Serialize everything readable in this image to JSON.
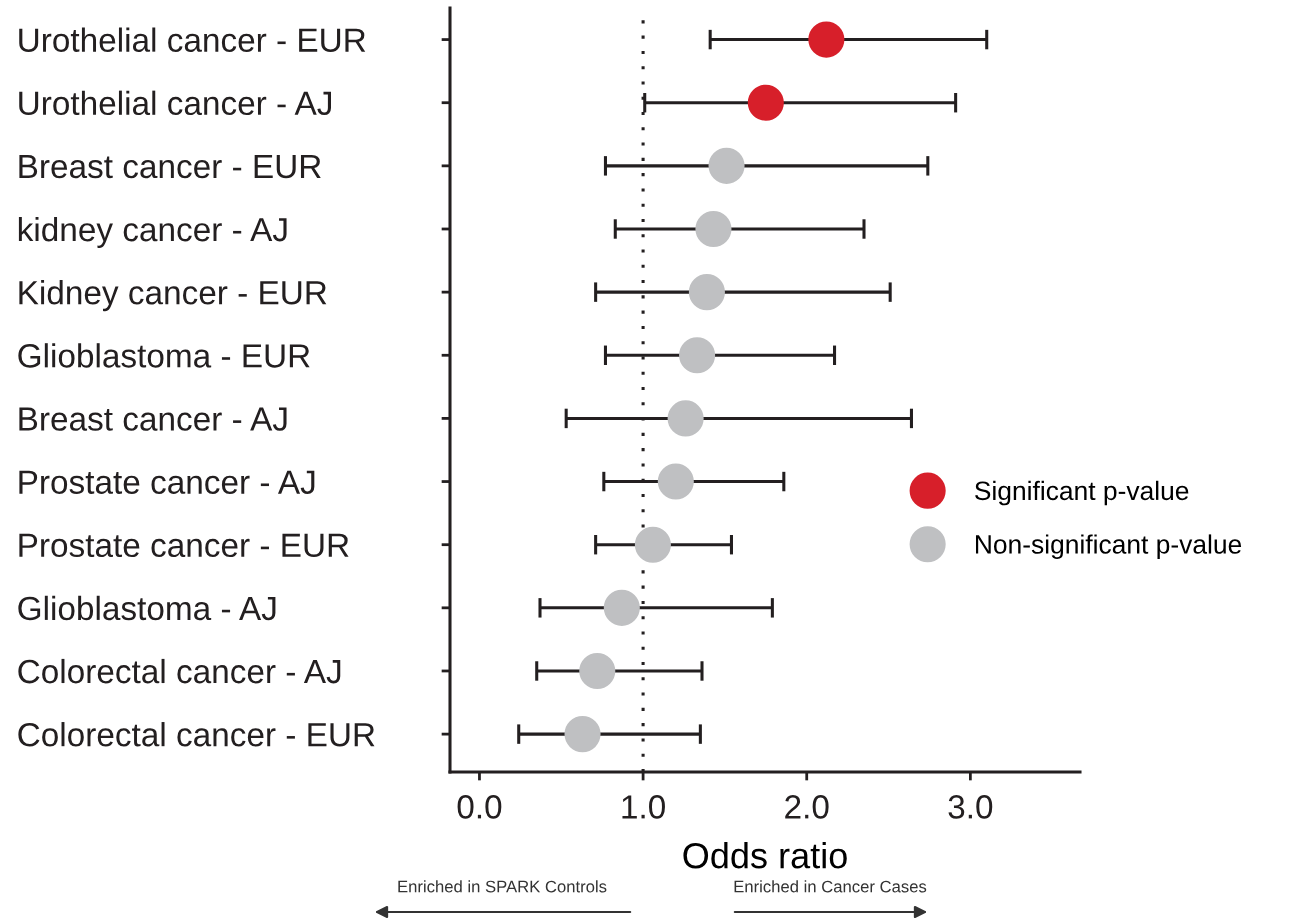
{
  "chart_data": {
    "type": "scatter",
    "orientation": "horizontal",
    "xlabel": "Odds ratio",
    "categories": [
      "Urothelial cancer - EUR",
      "Urothelial cancer - AJ",
      "Breast cancer - EUR",
      "kidney cancer - AJ",
      "Kidney cancer - EUR",
      "Glioblastoma - EUR",
      "Breast cancer - AJ",
      "Prostate cancer - AJ",
      "Prostate cancer - EUR",
      "Glioblastoma - AJ",
      "Colorectal cancer - AJ",
      "Colorectal cancer - EUR"
    ],
    "series": [
      {
        "name": "Significant p-value",
        "color": "#d71f2a",
        "values": [
          2.12,
          1.75,
          null,
          null,
          null,
          null,
          null,
          null,
          null,
          null,
          null,
          null
        ],
        "errors": [
          [
            1.41,
            3.1
          ],
          [
            1.01,
            2.91
          ],
          null,
          null,
          null,
          null,
          null,
          null,
          null,
          null,
          null,
          null
        ]
      },
      {
        "name": "Non-significant p-value",
        "color": "#bfc0c2",
        "values": [
          null,
          null,
          1.51,
          1.43,
          1.39,
          1.33,
          1.26,
          1.2,
          1.06,
          0.87,
          0.72,
          0.63
        ],
        "errors": [
          null,
          null,
          [
            0.77,
            2.74
          ],
          [
            0.83,
            2.35
          ],
          [
            0.71,
            2.51
          ],
          [
            0.77,
            2.17
          ],
          [
            0.53,
            2.64
          ],
          [
            0.76,
            1.86
          ],
          [
            0.71,
            1.54
          ],
          [
            0.37,
            1.79
          ],
          [
            0.35,
            1.36
          ],
          [
            0.24,
            1.35
          ]
        ]
      }
    ],
    "xlim": [
      -0.18,
      3.67
    ],
    "xticks": [
      {
        "value": 0,
        "label": "0.0"
      },
      {
        "value": 1,
        "label": "1.0"
      },
      {
        "value": 2,
        "label": "2.0"
      },
      {
        "value": 3,
        "label": "3.0"
      }
    ],
    "ref_lines": [
      {
        "axis": "x",
        "value": 1,
        "color": "#231f20",
        "line_style": "dotted"
      }
    ],
    "annotations": [
      "Enriched in SPARK Controls",
      "Enriched in Cancer Cases"
    ],
    "marker": "circle",
    "legend": "right",
    "grid": false
  }
}
